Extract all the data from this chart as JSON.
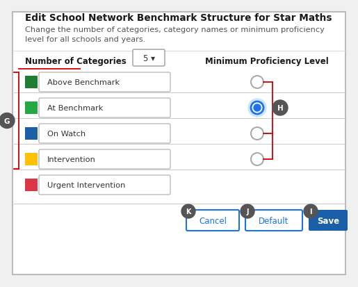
{
  "title": "Edit School Network Benchmark Structure for Star Maths",
  "subtitle": "Change the number of categories, category names or minimum proficiency\nlevel for all schools and years.",
  "num_categories_label": "Number of Categories",
  "num_categories_value": "5 ▾",
  "min_prof_label": "Minimum Proficiency Level",
  "categories": [
    {
      "name": "Above Benchmark",
      "color": "#1e7e34"
    },
    {
      "name": "At Benchmark",
      "color": "#28a745"
    },
    {
      "name": "On Watch",
      "color": "#1a5fa8"
    },
    {
      "name": "Intervention",
      "color": "#ffc107"
    },
    {
      "name": "Urgent Intervention",
      "color": "#dc3545"
    }
  ],
  "radio_buttons": [
    true,
    true,
    true,
    true,
    false
  ],
  "selected_radio": 1,
  "button_cancel": "Cancel",
  "button_default": "Default",
  "button_save": "Save",
  "label_g": "G",
  "label_h": "H",
  "label_i": "I",
  "label_j": "J",
  "label_k": "K",
  "bg_color": "#f0f0f0",
  "panel_color": "#ffffff",
  "border_color": "#bbbbbb",
  "line_color": "#cccccc",
  "red_line_color": "#cc0000",
  "radio_selected_color": "#1a73e8",
  "radio_glow_color": "#cce5ff",
  "button_save_bg": "#1a5fa8",
  "button_outline_color": "#1a73e8",
  "button_text_outline": "#1a73e8",
  "circle_label_color": "#555555",
  "title_color": "#1a1a1a",
  "subtitle_color": "#555555",
  "text_color": "#333333"
}
